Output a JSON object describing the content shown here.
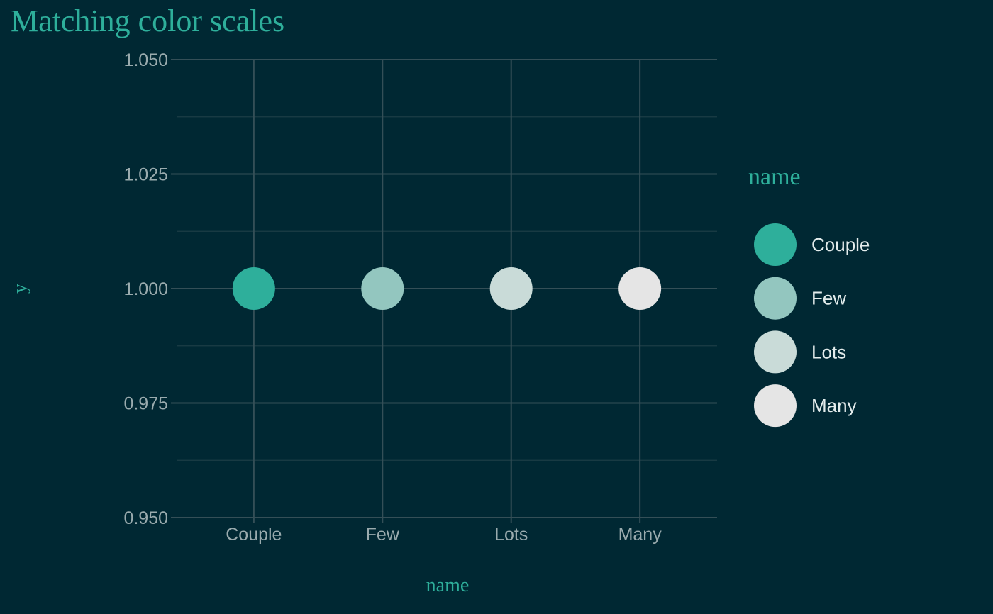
{
  "colors": {
    "background": "#002833",
    "grid_major": "#344f57",
    "grid_minor": "#1c3d46",
    "accent": "#2eaf9b",
    "tick_text": "#9aabae",
    "legend_text": "#e3ecec"
  },
  "chart_data": {
    "type": "scatter",
    "title": "Matching color scales",
    "xlabel": "name",
    "ylabel": "y",
    "categories": [
      "Couple",
      "Few",
      "Lots",
      "Many"
    ],
    "values": [
      1.0,
      1.0,
      1.0,
      1.0
    ],
    "point_colors": [
      "#2eaf9b",
      "#93c6bf",
      "#c9dbd8",
      "#e5e5e5"
    ],
    "ylim": [
      0.95,
      1.05
    ],
    "yticks": [
      "0.950",
      "0.975",
      "1.000",
      "1.025",
      "1.050"
    ],
    "ytick_values": [
      0.95,
      0.975,
      1.0,
      1.025,
      1.05
    ],
    "grid": true,
    "legend": {
      "title": "name",
      "placement": "right",
      "entries": [
        "Couple",
        "Few",
        "Lots",
        "Many"
      ]
    }
  }
}
